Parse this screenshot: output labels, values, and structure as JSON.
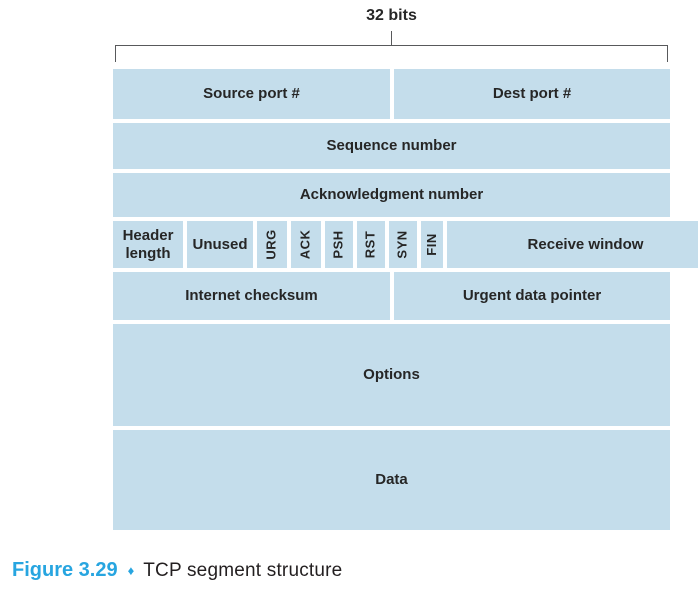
{
  "header": {
    "width_label": "32 bits"
  },
  "segment": {
    "row1": {
      "source_port": "Source port #",
      "dest_port": "Dest port #"
    },
    "row2": {
      "label": "Sequence number"
    },
    "row3": {
      "label": "Acknowledgment number"
    },
    "row4": {
      "header_length": "Header length",
      "unused": "Unused",
      "flags": [
        "URG",
        "ACK",
        "PSH",
        "RST",
        "SYN",
        "FIN"
      ],
      "receive_window": "Receive window"
    },
    "row5": {
      "checksum": "Internet checksum",
      "urgent_pointer": "Urgent data pointer"
    },
    "row6": {
      "label": "Options"
    },
    "row7": {
      "label": "Data"
    }
  },
  "caption": {
    "figure_label": "Figure 3.29",
    "separator": "♦",
    "title": "TCP segment structure"
  },
  "colors": {
    "cell_fill": "#c4ddeb",
    "text": "#262626",
    "bracket": "#58595b",
    "accent_blue": "#27a5e0"
  }
}
